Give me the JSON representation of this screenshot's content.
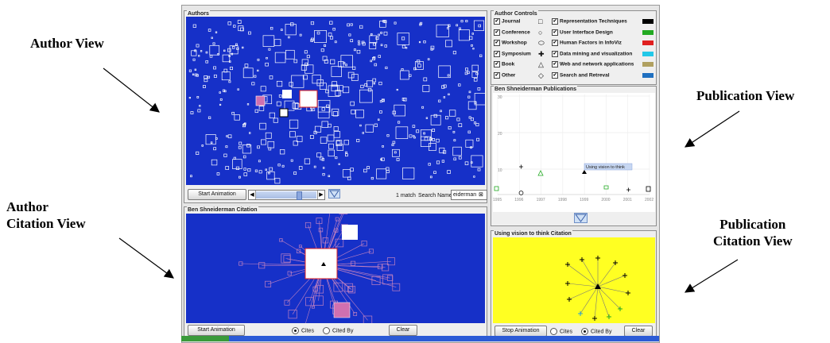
{
  "callouts": {
    "author_view": "Author View",
    "author_citation_view": [
      "Author",
      "Citation View"
    ],
    "publication_view": "Publication View",
    "publication_citation_view": [
      "Publication",
      "Citation View"
    ]
  },
  "authors_pane": {
    "title": "Authors",
    "start_animation": "Start Animation",
    "match_count": "1 match",
    "search_label": "Search Names",
    "search_value": "eiderman",
    "clear_glyph": "⊠",
    "colors": {
      "canvas": "#1630c8",
      "node": "#ffffff",
      "highlight": "#d070b0"
    }
  },
  "author_citation_pane": {
    "title": "Ben Shneiderman Citation",
    "start_animation": "Start Animation",
    "radio_cites": "Cites",
    "radio_cited_by": "Cited By",
    "clear": "Clear",
    "selected": "Cites"
  },
  "author_controls": {
    "title": "Author Controls",
    "types": [
      {
        "label": "Journal",
        "shape": "square-icon"
      },
      {
        "label": "Conference",
        "shape": "circle-icon"
      },
      {
        "label": "Workshop",
        "shape": "ellipse-icon"
      },
      {
        "label": "Symposium",
        "shape": "cross-icon"
      },
      {
        "label": "Book",
        "shape": "triangle-icon"
      },
      {
        "label": "Other",
        "shape": "diamond-icon"
      }
    ],
    "topics": [
      {
        "label": "Representation Techniques",
        "color": "#000000"
      },
      {
        "label": "User Interface Design",
        "color": "#22aa22"
      },
      {
        "label": "Human Factors in InfoViz",
        "color": "#e02020"
      },
      {
        "label": "Data mining and visualization",
        "color": "#22c8e8"
      },
      {
        "label": "Web and network applications",
        "color": "#b0a060"
      },
      {
        "label": "Search and Retreval",
        "color": "#2070c0"
      }
    ]
  },
  "publications_pane": {
    "title": "Ben Shneiderman Publications",
    "y_ticks": [
      "30",
      "20",
      "10"
    ],
    "x_ticks": [
      "1995",
      "1996",
      "1997",
      "1998",
      "1999",
      "2000",
      "2001",
      "2002"
    ],
    "tooltip": "Using vision to think"
  },
  "publication_citation_pane": {
    "title": "Using vision to think Citation",
    "stop_animation": "Stop Animation",
    "radio_cites": "Cites",
    "radio_cited_by": "Cited By",
    "clear": "Clear",
    "selected": "Cited By"
  }
}
